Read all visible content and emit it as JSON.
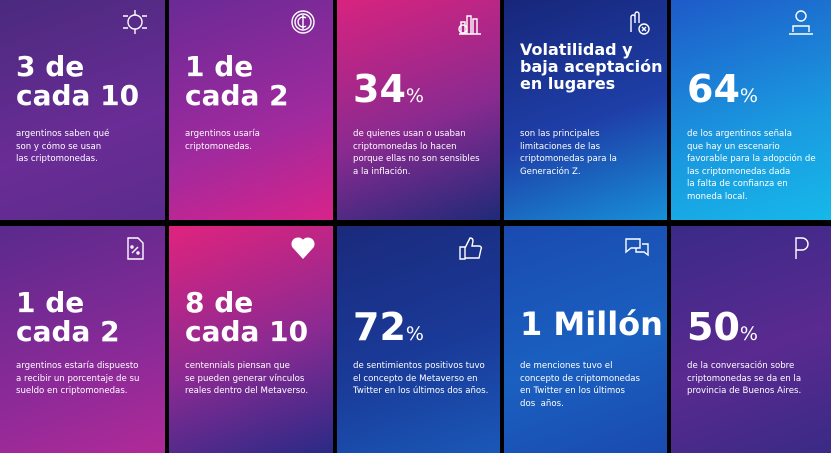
{
  "cards": [
    {
      "headline": [
        "3 de",
        "cada 10"
      ],
      "body": [
        "argentinos saben qué",
        "son y cómo se usan",
        "las criptomonedas."
      ]
    },
    {
      "headline": [
        "1 de",
        "cada 2"
      ],
      "body": [
        "argentinos usaría",
        "criptomonedas."
      ]
    },
    {
      "headline": [
        "34"
      ],
      "suffix": "%",
      "body": [
        "de quienes usan o usaban",
        "criptomonedas lo hacen",
        "porque ellas no son sensibles",
        "a la inflación."
      ]
    },
    {
      "headline": [
        "Volatilidad y",
        "baja aceptación",
        "en lugares"
      ],
      "body": [
        "son las principales",
        "limitaciones de las",
        "criptomonedas para la",
        "Generación Z."
      ]
    },
    {
      "headline": [
        "64"
      ],
      "suffix": "%",
      "body": [
        "de los argentinos señala",
        "que hay un escenario",
        "favorable para la adopción de",
        "las criptomonedas dada",
        "la falta de confianza en",
        "moneda local."
      ]
    },
    {
      "headline": [
        "1 de",
        "cada 2"
      ],
      "body": [
        "argentinos estaría dispuesto",
        "a recibir un porcentaje de su",
        "sueldo en criptomonedas."
      ]
    },
    {
      "headline": [
        "8 de",
        "cada 10"
      ],
      "body": [
        "centennials piensan que",
        "se pueden generar vínculos",
        "reales dentro del Metaverso."
      ]
    },
    {
      "headline": [
        "72"
      ],
      "suffix": "%",
      "body": [
        "de sentimientos positivos tuvo",
        "el concepto de Metaverso en",
        "Twitter en los últimos dos años."
      ]
    },
    {
      "headline": [
        "1 Millón"
      ],
      "body": [
        "de menciones tuvo el",
        "concepto de criptomonedas",
        "en Twitter en los últimos",
        "dos  años."
      ]
    },
    {
      "headline": [
        "50"
      ],
      "suffix": "%",
      "body": [
        "de la conversación sobre",
        "criptomonedas se da en la",
        "provincia de Buenos Aires."
      ]
    }
  ]
}
